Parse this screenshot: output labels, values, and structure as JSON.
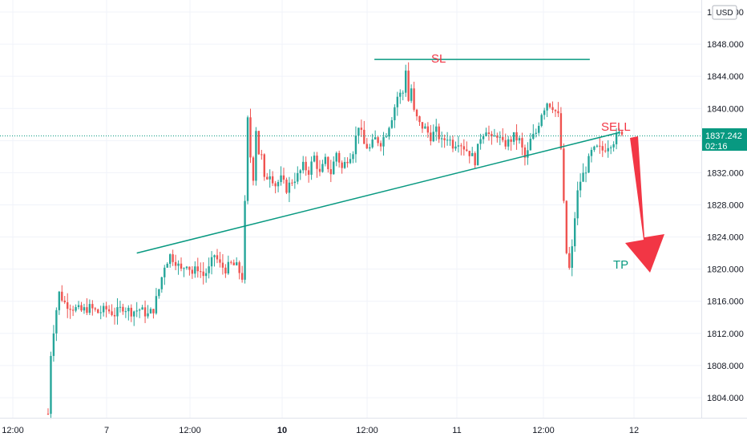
{
  "currency_label": "USD",
  "annotations": {
    "sl": "SL",
    "sell": "SELL",
    "tp": "TP"
  },
  "price_tag": {
    "price": "1837.242",
    "countdown": "02:16"
  },
  "colors": {
    "up": "#26a69a",
    "down": "#ef5350",
    "teal_line": "#089981",
    "sl_text": "#f23645",
    "sell_text": "#f23645",
    "tp_text": "#089981",
    "arrow": "#f23645",
    "tag_bg": "#089981"
  },
  "chart_data": {
    "type": "candlestick",
    "ylim": [
      1801.5,
      1853.5
    ],
    "y_ticks": [
      1804,
      1808,
      1812,
      1816,
      1820,
      1824,
      1828,
      1832,
      1836,
      1840,
      1844,
      1848,
      1852
    ],
    "y_tick_labels": [
      "1804.000",
      "1808.000",
      "1812.000",
      "1816.000",
      "1820.000",
      "1824.000",
      "1828.000",
      "1832.000",
      "1836.000",
      "1840.000",
      "1844.000",
      "1848.000",
      "1852.000"
    ],
    "x_ticks": [
      {
        "label": "12:00",
        "bold": false
      },
      {
        "label": "7",
        "bold": false
      },
      {
        "label": "12:00",
        "bold": false
      },
      {
        "label": "10",
        "bold": true
      },
      {
        "label": "12:00",
        "bold": false
      },
      {
        "label": "11",
        "bold": false
      },
      {
        "label": "12:00",
        "bold": false
      },
      {
        "label": "12",
        "bold": false
      }
    ],
    "close_path": [
      [
        0.0,
        1802.0
      ],
      [
        1.0,
        1809.5
      ],
      [
        2.0,
        1812.5
      ],
      [
        3.0,
        1815.0
      ],
      [
        4.0,
        1817.0
      ],
      [
        6.0,
        1815.8
      ],
      [
        9.0,
        1815.2
      ],
      [
        12.0,
        1814.8
      ],
      [
        15.0,
        1815.2
      ],
      [
        18.0,
        1814.6
      ],
      [
        21.0,
        1815.0
      ],
      [
        24.0,
        1814.4
      ],
      [
        27.0,
        1815.3
      ],
      [
        30.0,
        1814.7
      ],
      [
        33.0,
        1815.0
      ],
      [
        36.0,
        1814.3
      ],
      [
        38.0,
        1815.0
      ],
      [
        40.0,
        1817.5
      ],
      [
        42.0,
        1820.5
      ],
      [
        44.0,
        1821.7
      ],
      [
        46.0,
        1821.0
      ],
      [
        48.0,
        1819.8
      ],
      [
        50.0,
        1820.8
      ],
      [
        52.0,
        1819.5
      ],
      [
        54.0,
        1820.2
      ],
      [
        56.0,
        1819.2
      ],
      [
        58.0,
        1820.0
      ],
      [
        60.0,
        1821.8
      ],
      [
        62.0,
        1820.5
      ],
      [
        64.0,
        1820.0
      ],
      [
        66.0,
        1820.6
      ],
      [
        68.0,
        1820.3
      ],
      [
        70.0,
        1819.0
      ],
      [
        71.0,
        1828.0
      ],
      [
        72.0,
        1838.5
      ],
      [
        73.0,
        1834.0
      ],
      [
        74.0,
        1831.5
      ],
      [
        75.0,
        1837.5
      ],
      [
        76.0,
        1834.5
      ],
      [
        77.0,
        1834.0
      ],
      [
        78.0,
        1831.0
      ],
      [
        80.0,
        1832.0
      ],
      [
        82.0,
        1830.5
      ],
      [
        84.0,
        1831.2
      ],
      [
        86.0,
        1830.0
      ],
      [
        88.0,
        1831.0
      ],
      [
        90.0,
        1831.6
      ],
      [
        92.0,
        1832.8
      ],
      [
        94.0,
        1832.2
      ],
      [
        96.0,
        1834.0
      ],
      [
        98.0,
        1831.8
      ],
      [
        100.0,
        1833.5
      ],
      [
        102.0,
        1832.0
      ],
      [
        104.0,
        1834.5
      ],
      [
        106.0,
        1832.5
      ],
      [
        108.0,
        1833.8
      ],
      [
        110.0,
        1834.8
      ],
      [
        112.0,
        1838.0
      ],
      [
        114.0,
        1835.5
      ],
      [
        116.0,
        1835.0
      ],
      [
        118.0,
        1836.2
      ],
      [
        120.0,
        1835.8
      ],
      [
        122.0,
        1837.0
      ],
      [
        124.0,
        1839.0
      ],
      [
        126.0,
        1841.5
      ],
      [
        128.0,
        1842.0
      ],
      [
        129.0,
        1845.0
      ],
      [
        130.0,
        1841.0
      ],
      [
        131.0,
        1842.5
      ],
      [
        132.0,
        1839.5
      ],
      [
        134.0,
        1838.0
      ],
      [
        136.0,
        1837.5
      ],
      [
        138.0,
        1836.5
      ],
      [
        140.0,
        1837.2
      ],
      [
        142.0,
        1835.8
      ],
      [
        144.0,
        1836.5
      ],
      [
        146.0,
        1835.5
      ],
      [
        148.0,
        1836.0
      ],
      [
        150.0,
        1835.2
      ],
      [
        152.0,
        1834.5
      ],
      [
        154.0,
        1833.5
      ],
      [
        156.0,
        1836.5
      ],
      [
        158.0,
        1837.5
      ],
      [
        160.0,
        1836.0
      ],
      [
        162.0,
        1836.8
      ],
      [
        164.0,
        1835.5
      ],
      [
        166.0,
        1835.8
      ],
      [
        168.0,
        1836.5
      ],
      [
        170.0,
        1836.0
      ],
      [
        172.0,
        1833.8
      ],
      [
        173.0,
        1834.5
      ],
      [
        174.0,
        1836.0
      ],
      [
        176.0,
        1837.0
      ],
      [
        178.0,
        1839.5
      ],
      [
        180.0,
        1840.8
      ],
      [
        182.0,
        1840.3
      ],
      [
        184.0,
        1839.0
      ],
      [
        185.0,
        1835.0
      ],
      [
        186.0,
        1828.0
      ],
      [
        187.0,
        1822.0
      ],
      [
        188.0,
        1820.0
      ],
      [
        189.0,
        1822.5
      ],
      [
        190.0,
        1826.5
      ],
      [
        191.0,
        1829.5
      ],
      [
        192.0,
        1831.0
      ],
      [
        194.0,
        1832.5
      ],
      [
        196.0,
        1834.5
      ],
      [
        198.0,
        1835.0
      ],
      [
        200.0,
        1834.8
      ],
      [
        202.0,
        1835.5
      ],
      [
        204.0,
        1836.0
      ],
      [
        206.0,
        1836.8
      ],
      [
        207.0,
        1837.2
      ]
    ],
    "x_range": [
      0,
      207
    ],
    "trendlines": [
      {
        "name": "SL",
        "from": [
          117.7,
          1846.1
        ],
        "to": [
          195.4,
          1846.1
        ]
      },
      {
        "name": "trendline",
        "from": [
          32.0,
          1822.0
        ],
        "to": [
          206.0,
          1837.0
        ]
      }
    ]
  }
}
